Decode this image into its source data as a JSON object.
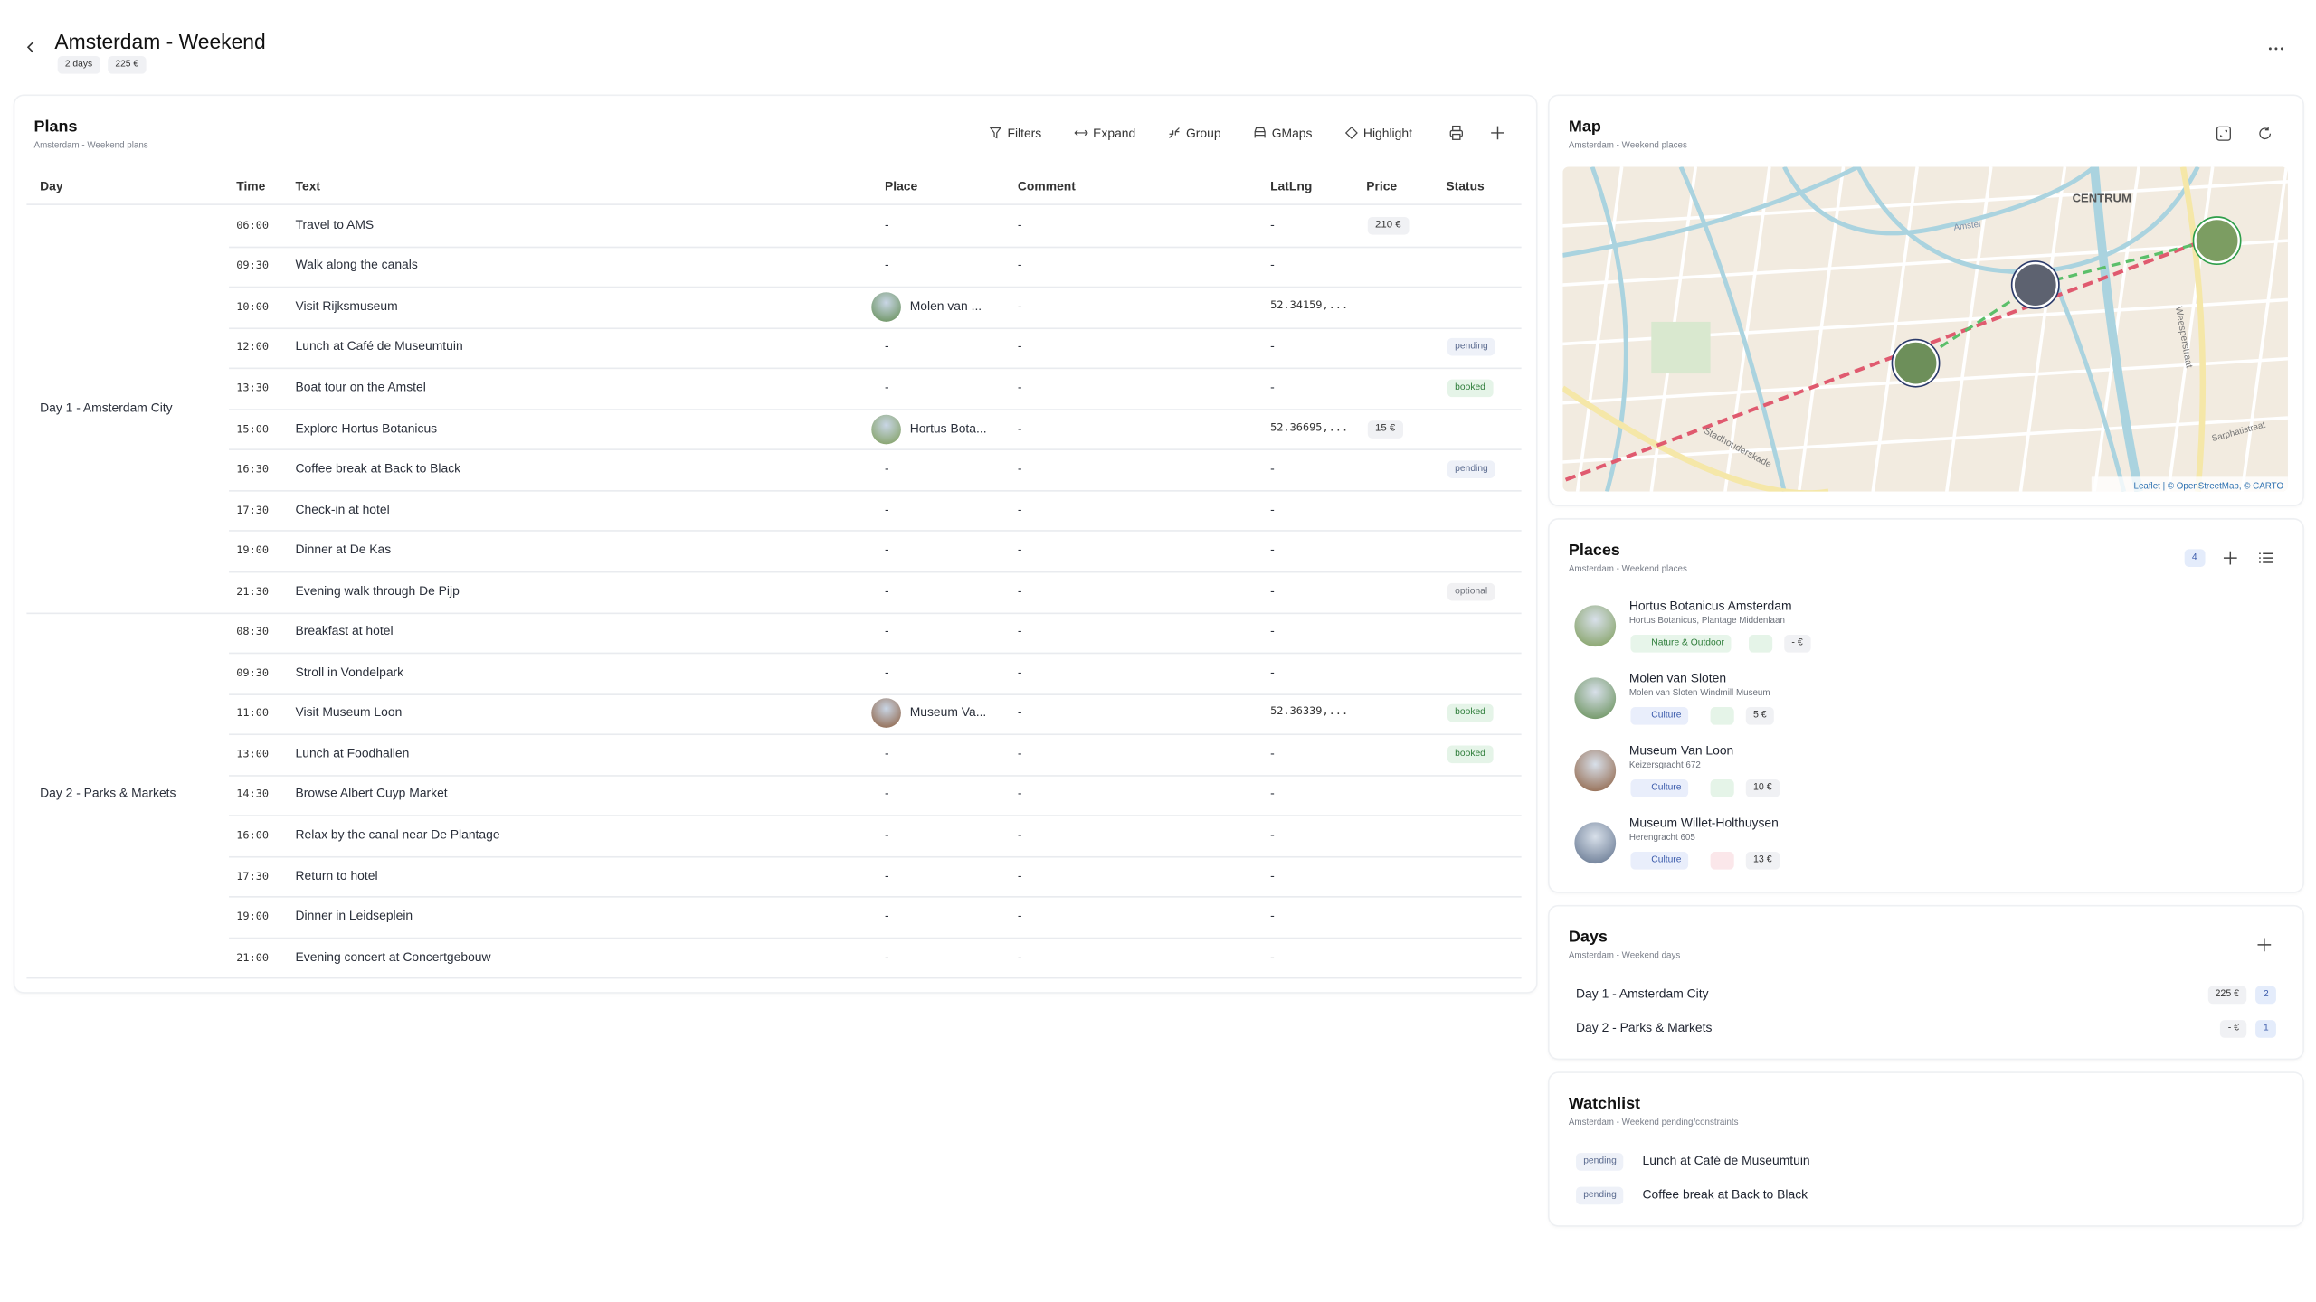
{
  "header": {
    "title": "Amsterdam - Weekend",
    "badges": [
      "2 days",
      "225 €"
    ]
  },
  "plans": {
    "title": "Plans",
    "subtitle": "Amsterdam - Weekend plans",
    "toolbar": [
      "Filters",
      "Expand",
      "Group",
      "GMaps",
      "Highlight"
    ],
    "columns": [
      "Day",
      "Time",
      "Text",
      "Place",
      "Comment",
      "LatLng",
      "Price",
      "Status"
    ],
    "groups": [
      {
        "day": "Day 1 - Amsterdam City",
        "rows": [
          {
            "time": "06:00",
            "text": "Travel to AMS",
            "place": "-",
            "comment": "-",
            "latlng": "-",
            "price": "210 €"
          },
          {
            "time": "09:30",
            "text": "Walk along the canals",
            "place": "-",
            "comment": "-",
            "latlng": "-"
          },
          {
            "time": "10:00",
            "text": "Visit Rijksmuseum",
            "place": "Molen van ...",
            "comment": "-",
            "latlng": "52.34159,..."
          },
          {
            "time": "12:00",
            "text": "Lunch at Café de Museumtuin",
            "place": "-",
            "comment": "-",
            "latlng": "-",
            "status": "pending"
          },
          {
            "time": "13:30",
            "text": "Boat tour on the Amstel",
            "place": "-",
            "comment": "-",
            "latlng": "-",
            "status": "booked"
          },
          {
            "time": "15:00",
            "text": "Explore Hortus Botanicus",
            "place": "Hortus Bota...",
            "comment": "-",
            "latlng": "52.36695,...",
            "price": "15 €"
          },
          {
            "time": "16:30",
            "text": "Coffee break at Back to Black",
            "place": "-",
            "comment": "-",
            "latlng": "-",
            "status": "pending"
          },
          {
            "time": "17:30",
            "text": "Check-in at hotel",
            "place": "-",
            "comment": "-",
            "latlng": "-"
          },
          {
            "time": "19:00",
            "text": "Dinner at De Kas",
            "place": "-",
            "comment": "-",
            "latlng": "-"
          },
          {
            "time": "21:30",
            "text": "Evening walk through De Pijp",
            "place": "-",
            "comment": "-",
            "latlng": "-",
            "status": "optional"
          }
        ]
      },
      {
        "day": "Day 2 - Parks & Markets",
        "rows": [
          {
            "time": "08:30",
            "text": "Breakfast at hotel",
            "place": "-",
            "comment": "-",
            "latlng": "-"
          },
          {
            "time": "09:30",
            "text": "Stroll in Vondelpark",
            "place": "-",
            "comment": "-",
            "latlng": "-"
          },
          {
            "time": "11:00",
            "text": "Visit Museum Loon",
            "place": "Museum Va...",
            "comment": "-",
            "latlng": "52.36339,...",
            "status": "booked"
          },
          {
            "time": "13:00",
            "text": "Lunch at Foodhallen",
            "place": "-",
            "comment": "-",
            "latlng": "-",
            "status": "booked"
          },
          {
            "time": "14:30",
            "text": "Browse Albert Cuyp Market",
            "place": "-",
            "comment": "-",
            "latlng": "-"
          },
          {
            "time": "16:00",
            "text": "Relax by the canal near De Plantage",
            "place": "-",
            "comment": "-",
            "latlng": "-"
          },
          {
            "time": "17:30",
            "text": "Return to hotel",
            "place": "-",
            "comment": "-",
            "latlng": "-"
          },
          {
            "time": "19:00",
            "text": "Dinner in Leidseplein",
            "place": "-",
            "comment": "-",
            "latlng": "-"
          },
          {
            "time": "21:00",
            "text": "Evening concert at Concertgebouw",
            "place": "-",
            "comment": "-",
            "latlng": "-"
          }
        ]
      }
    ]
  },
  "map": {
    "title": "Map",
    "subtitle": "Amsterdam - Weekend places",
    "labels": [
      "CENTRUM",
      "Amstel",
      "Stadhouderskade",
      "Weesperstraat",
      "Sarphatistraat"
    ],
    "attribution": "Leaflet | © OpenStreetMap, © CARTO"
  },
  "places": {
    "title": "Places",
    "subtitle": "Amsterdam - Weekend places",
    "count": "4",
    "items": [
      {
        "name": "Hortus Botanicus Amsterdam",
        "address": "Hortus Botanicus, Plantage Middenlaan",
        "category": "Nature & Outdoor",
        "price": "- €"
      },
      {
        "name": "Molen van Sloten",
        "address": "Molen van Sloten Windmill Museum",
        "category": "Culture",
        "price": "5 €"
      },
      {
        "name": "Museum Van Loon",
        "address": "Keizersgracht 672",
        "category": "Culture",
        "price": "10 €"
      },
      {
        "name": "Museum Willet-Holthuysen",
        "address": "Herengracht 605",
        "category": "Culture",
        "price": "13 €"
      }
    ]
  },
  "days": {
    "title": "Days",
    "subtitle": "Amsterdam - Weekend days",
    "items": [
      {
        "name": "Day 1 - Amsterdam City",
        "price": "225 €",
        "count": "2"
      },
      {
        "name": "Day 2 - Parks & Markets",
        "price": "- €",
        "count": "1"
      }
    ]
  },
  "watchlist": {
    "title": "Watchlist",
    "subtitle": "Amsterdam - Weekend pending/constraints",
    "items": [
      {
        "status": "pending",
        "text": "Lunch at Café de Museumtuin"
      },
      {
        "status": "pending",
        "text": "Coffee break at Back to Black"
      }
    ]
  }
}
